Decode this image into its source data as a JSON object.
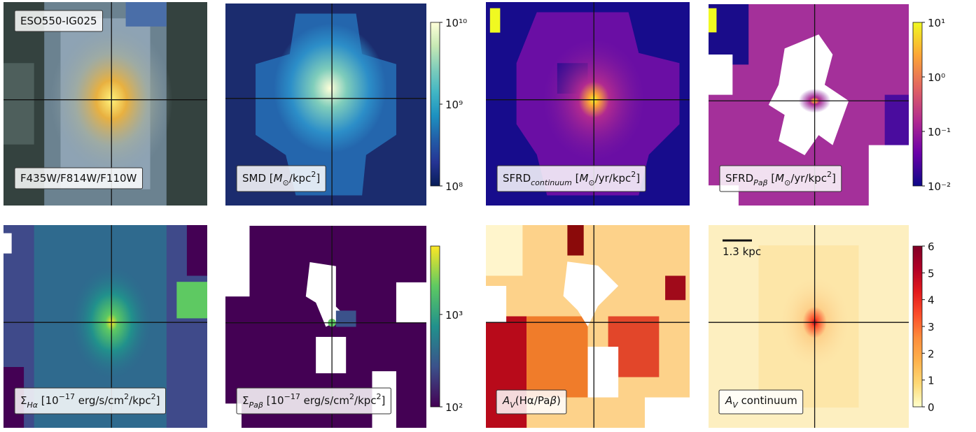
{
  "chart_data": [
    {
      "type": "image",
      "labels": [
        [
          {
            "text": "ESO550-IG025"
          }
        ],
        [
          {
            "text": "F435W/F814W/F110W"
          }
        ]
      ]
    },
    {
      "type": "image",
      "labels": [
        [
          {
            "text": "SMD ["
          },
          {
            "text": "M",
            "italic": true
          },
          {
            "text": "⊙",
            "sub": true
          },
          {
            "text": "/kpc"
          },
          {
            "text": "2",
            "sup": true
          },
          {
            "text": "]"
          }
        ]
      ],
      "colorbar": {
        "log": true,
        "lim": [
          100000000,
          10000000000
        ],
        "ticks": [
          {
            "value": 100000000,
            "label": "10⁸"
          },
          {
            "value": 1000000000,
            "label": "10⁹"
          },
          {
            "value": 10000000000,
            "label": "10¹⁰"
          }
        ],
        "colors": [
          "#081d58",
          "#253494",
          "#225ea8",
          "#1d91c0",
          "#41b6c4",
          "#7fcdbb",
          "#c7e9b4",
          "#ffffd9"
        ]
      }
    },
    {
      "type": "image",
      "labels": [
        [
          {
            "text": "SFRD"
          },
          {
            "text": "continuum",
            "sub": true,
            "italic": true
          },
          {
            "text": " ["
          },
          {
            "text": "M",
            "italic": true
          },
          {
            "text": "⊙",
            "sub": true
          },
          {
            "text": "/yr/kpc"
          },
          {
            "text": "2",
            "sup": true
          },
          {
            "text": "]"
          }
        ]
      ]
    },
    {
      "type": "image",
      "labels": [
        [
          {
            "text": "SFRD"
          },
          {
            "text": "Paβ",
            "sub": true,
            "italic": true
          },
          {
            "text": " ["
          },
          {
            "text": "M",
            "italic": true
          },
          {
            "text": "⊙",
            "sub": true
          },
          {
            "text": "/yr/kpc"
          },
          {
            "text": "2",
            "sup": true
          },
          {
            "text": "]"
          }
        ]
      ],
      "colorbar": {
        "log": true,
        "lim": [
          0.01,
          10
        ],
        "ticks": [
          {
            "value": 0.01,
            "label": "10⁻²"
          },
          {
            "value": 0.1,
            "label": "10⁻¹"
          },
          {
            "value": 1,
            "label": "10⁰"
          },
          {
            "value": 10,
            "label": "10¹"
          }
        ],
        "colors": [
          "#0d0887",
          "#6a00a8",
          "#b12a90",
          "#e16462",
          "#fca636",
          "#f0f921"
        ]
      }
    },
    {
      "type": "image",
      "labels": [
        [
          {
            "text": "Σ"
          },
          {
            "text": "Hα",
            "sub": true,
            "italic": true
          },
          {
            "text": " [10"
          },
          {
            "text": "−17",
            "sup": true
          },
          {
            "text": " erg/s/cm"
          },
          {
            "text": "2",
            "sup": true
          },
          {
            "text": "/kpc"
          },
          {
            "text": "2",
            "sup": true
          },
          {
            "text": "]"
          }
        ]
      ]
    },
    {
      "type": "image",
      "labels": [
        [
          {
            "text": "Σ"
          },
          {
            "text": "Paβ",
            "sub": true,
            "italic": true
          },
          {
            "text": " [10"
          },
          {
            "text": "−17",
            "sup": true
          },
          {
            "text": " erg/s/cm"
          },
          {
            "text": "2",
            "sup": true
          },
          {
            "text": "/kpc"
          },
          {
            "text": "2",
            "sup": true
          },
          {
            "text": "]"
          }
        ]
      ],
      "colorbar": {
        "log": true,
        "lim": [
          100,
          5500
        ],
        "ticks": [
          {
            "value": 100,
            "label": "10²"
          },
          {
            "value": 1000,
            "label": "10³"
          }
        ],
        "colors": [
          "#440154",
          "#3b528b",
          "#21918c",
          "#5ec962",
          "#fde725"
        ]
      }
    },
    {
      "type": "image",
      "labels": [
        [
          {
            "text": "A",
            "italic": true
          },
          {
            "text": "V",
            "sub": true,
            "italic": true
          },
          {
            "text": "(Hα/Pa"
          },
          {
            "text": "β",
            "italic": true
          },
          {
            "text": ")"
          }
        ]
      ]
    },
    {
      "type": "image",
      "labels": [
        [
          {
            "text": "A",
            "italic": true
          },
          {
            "text": "V",
            "sub": true,
            "italic": true
          },
          {
            "text": " continuum"
          }
        ]
      ],
      "scalebar": "1.3 kpc",
      "colorbar": {
        "log": false,
        "lim": [
          0,
          6
        ],
        "ticks": [
          0,
          1,
          2,
          3,
          4,
          5,
          6
        ],
        "colors": [
          "#ffffcc",
          "#fed976",
          "#feb24c",
          "#fd8d3c",
          "#fc4e2a",
          "#e31a1c",
          "#b10026",
          "#800026"
        ]
      }
    }
  ]
}
